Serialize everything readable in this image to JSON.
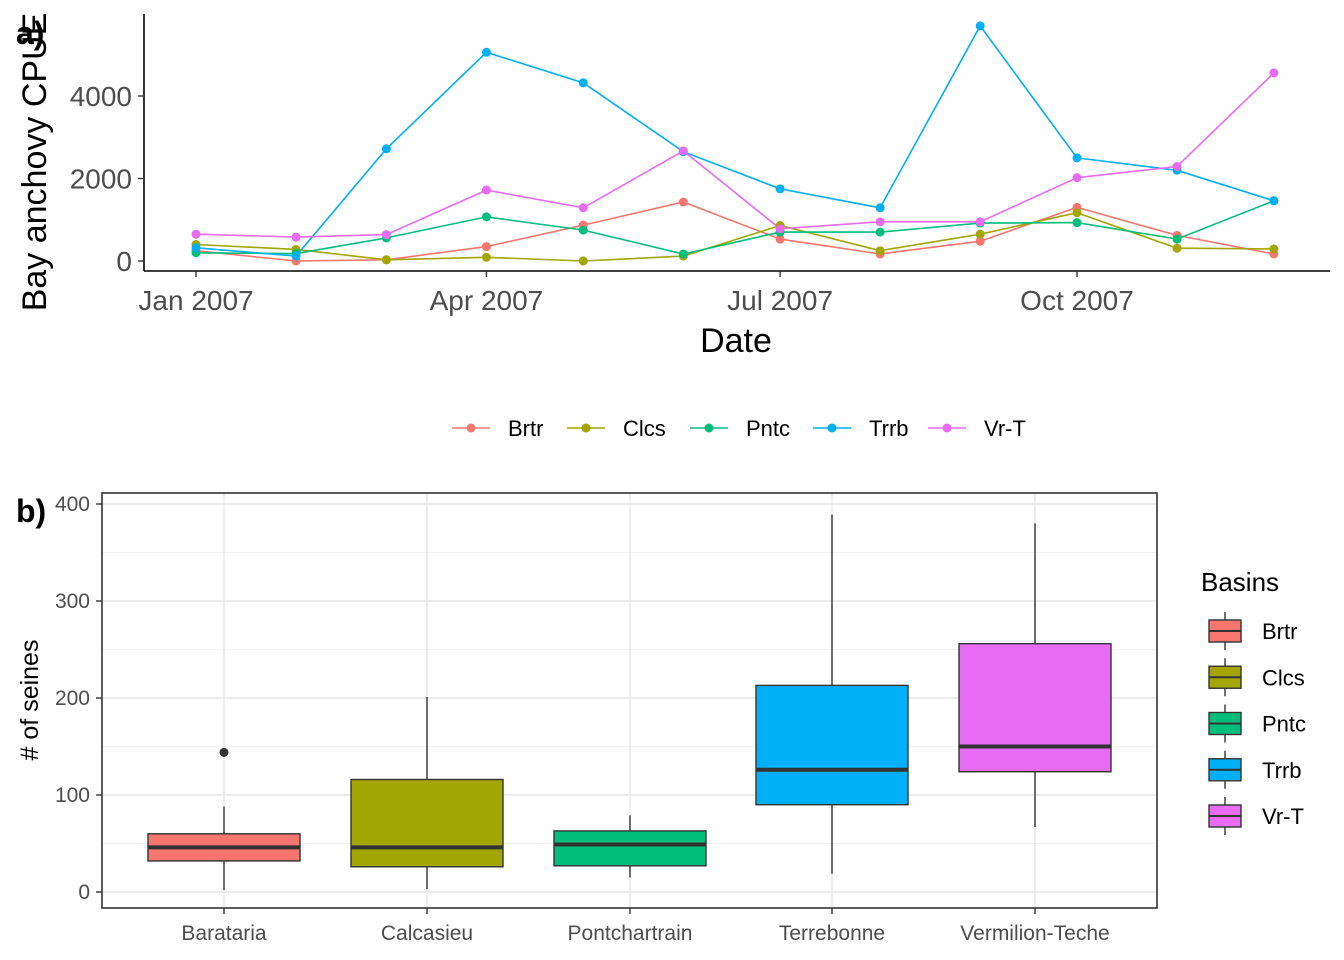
{
  "chart_data": [
    {
      "type": "line",
      "panel_tag": "a)",
      "xlabel": "Date",
      "ylabel": "Bay anchovy CPUE",
      "x": [
        "2007-01-01",
        "2007-02-01",
        "2007-03-01",
        "2007-04-01",
        "2007-05-01",
        "2007-06-01",
        "2007-07-01",
        "2007-08-01",
        "2007-09-01",
        "2007-10-01",
        "2007-11-01",
        "2007-12-01"
      ],
      "x_ticks": [
        {
          "date": "2007-01-01",
          "label": "Jan 2007"
        },
        {
          "date": "2007-04-01",
          "label": "Apr 2007"
        },
        {
          "date": "2007-07-01",
          "label": "Jul 2007"
        },
        {
          "date": "2007-10-01",
          "label": "Oct 2007"
        }
      ],
      "y_ticks": [
        0,
        2000,
        4000
      ],
      "ylim": [
        -250,
        5900
      ],
      "grid": false,
      "legend_position": "bottom",
      "series": [
        {
          "name": "Brtr",
          "color": "#F8766D",
          "values": [
            250,
            0,
            30,
            350,
            870,
            1430,
            530,
            170,
            480,
            1300,
            620,
            170
          ]
        },
        {
          "name": "Clcs",
          "color": "#A3A500",
          "values": [
            400,
            280,
            30,
            90,
            0,
            120,
            860,
            250,
            650,
            1170,
            310,
            290
          ]
        },
        {
          "name": "Pntc",
          "color": "#00BF7D",
          "values": [
            200,
            180,
            560,
            1070,
            750,
            170,
            700,
            700,
            920,
            930,
            530,
            1460
          ]
        },
        {
          "name": "Trrb",
          "color": "#00B0F6",
          "values": [
            320,
            120,
            2720,
            5060,
            4320,
            2650,
            1750,
            1290,
            5700,
            2500,
            2200,
            1460
          ]
        },
        {
          "name": "Vr-T",
          "color": "#E76BF3",
          "values": [
            650,
            580,
            640,
            1720,
            1290,
            2670,
            780,
            950,
            950,
            2020,
            2290,
            4560
          ]
        }
      ]
    },
    {
      "type": "box",
      "panel_tag": "b)",
      "xlabel": "",
      "ylabel": "# of seines",
      "categories": [
        "Barataria",
        "Calcasieu",
        "Pontchartrain",
        "Terrebonne",
        "Vermilion-Teche"
      ],
      "y_ticks": [
        0,
        100,
        200,
        300,
        400
      ],
      "ylim": [
        -17,
        402
      ],
      "grid": true,
      "legend_title": "Basins",
      "legend_position": "right",
      "boxes": [
        {
          "name": "Brtr",
          "color": "#F8766D",
          "min": 2,
          "q1": 32,
          "median": 46,
          "q3": 60,
          "max": 88,
          "outliers": [
            144
          ]
        },
        {
          "name": "Clcs",
          "color": "#A3A500",
          "min": 3,
          "q1": 26,
          "median": 46,
          "q3": 116,
          "max": 201,
          "outliers": []
        },
        {
          "name": "Pntc",
          "color": "#00BF7D",
          "min": 15,
          "q1": 27,
          "median": 49,
          "q3": 63,
          "max": 79,
          "outliers": []
        },
        {
          "name": "Trrb",
          "color": "#00B0F6",
          "min": 19,
          "q1": 90,
          "median": 126,
          "q3": 213,
          "max": 389,
          "outliers": []
        },
        {
          "name": "Vr-T",
          "color": "#E76BF3",
          "min": 67,
          "q1": 124,
          "median": 150,
          "q3": 256,
          "max": 380,
          "outliers": []
        }
      ]
    }
  ]
}
